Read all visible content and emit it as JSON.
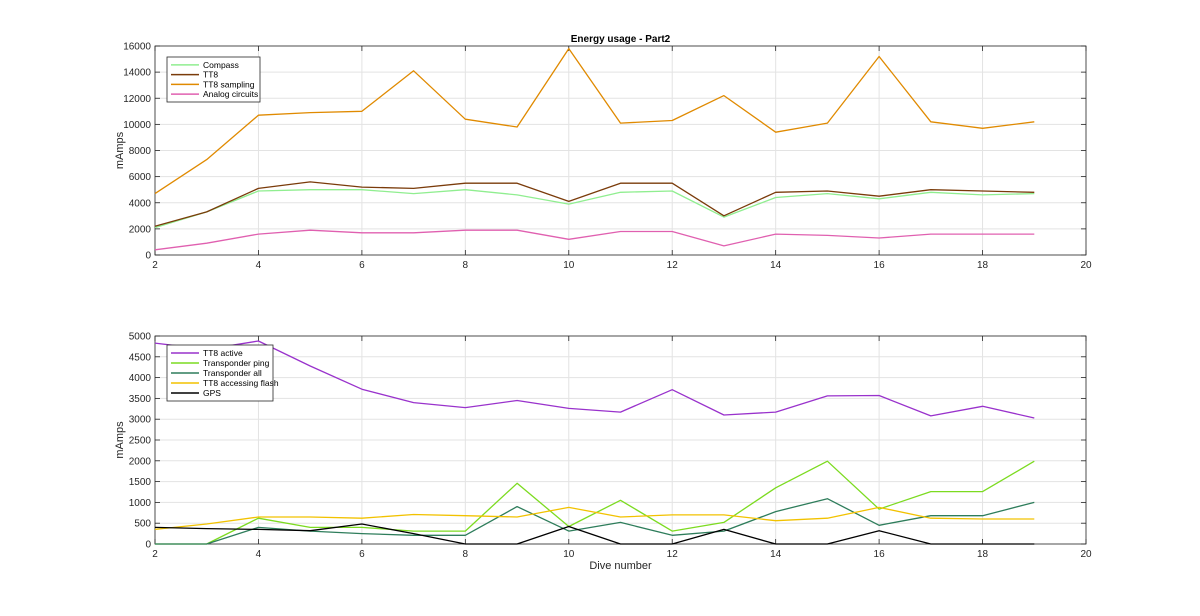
{
  "chart_data": [
    {
      "type": "line",
      "title": "Energy usage - Part2",
      "xlabel": "",
      "ylabel": "mAmps",
      "xlim": [
        2,
        20
      ],
      "ylim": [
        0,
        16000
      ],
      "xticks": [
        2,
        4,
        6,
        8,
        10,
        12,
        14,
        16,
        18,
        20
      ],
      "yticks": [
        0,
        2000,
        4000,
        6000,
        8000,
        10000,
        12000,
        14000,
        16000
      ],
      "grid": true,
      "legend_position": "top-left",
      "x": [
        2,
        3,
        4,
        5,
        6,
        7,
        8,
        9,
        10,
        11,
        12,
        13,
        14,
        15,
        16,
        17,
        18,
        19
      ],
      "series": [
        {
          "name": "Compass",
          "color": "#90ee90",
          "values": [
            2100,
            3300,
            4900,
            5000,
            5000,
            4700,
            5000,
            4600,
            3900,
            4800,
            4900,
            2900,
            4400,
            4700,
            4300,
            4800,
            4600,
            4700
          ]
        },
        {
          "name": "TT8",
          "color": "#7a3b0a",
          "values": [
            2200,
            3300,
            5100,
            5600,
            5200,
            5100,
            5500,
            5500,
            4100,
            5500,
            5500,
            3000,
            4800,
            4900,
            4500,
            5000,
            4900,
            4800
          ]
        },
        {
          "name": "TT8 sampling",
          "color": "#e08a00",
          "values": [
            4700,
            7300,
            10700,
            10900,
            11000,
            14100,
            10400,
            9800,
            15800,
            10100,
            10300,
            12200,
            9400,
            10100,
            15200,
            10200,
            9700,
            10200
          ]
        },
        {
          "name": "Analog circuits",
          "color": "#e060b0",
          "values": [
            400,
            900,
            1600,
            1900,
            1700,
            1700,
            1900,
            1900,
            1200,
            1800,
            1800,
            700,
            1600,
            1500,
            1300,
            1600,
            1600,
            1600
          ]
        }
      ]
    },
    {
      "type": "line",
      "title": "",
      "xlabel": "Dive number",
      "ylabel": "mAmps",
      "xlim": [
        2,
        20
      ],
      "ylim": [
        0,
        5000
      ],
      "xticks": [
        2,
        4,
        6,
        8,
        10,
        12,
        14,
        16,
        18,
        20
      ],
      "yticks": [
        0,
        500,
        1000,
        1500,
        2000,
        2500,
        3000,
        3500,
        4000,
        4500,
        5000
      ],
      "grid": true,
      "legend_position": "top-left",
      "x": [
        2,
        3,
        4,
        5,
        6,
        7,
        8,
        9,
        10,
        11,
        12,
        13,
        14,
        15,
        16,
        17,
        18,
        19
      ],
      "series": [
        {
          "name": "TT8 active",
          "color": "#9932cc",
          "values": [
            4830,
            4680,
            4880,
            4280,
            3720,
            3400,
            3280,
            3450,
            3260,
            3170,
            3710,
            3100,
            3170,
            3560,
            3570,
            3080,
            3310,
            3030
          ]
        },
        {
          "name": "Transponder ping",
          "color": "#7cdb20",
          "values": [
            0,
            0,
            620,
            400,
            400,
            310,
            310,
            1460,
            420,
            1050,
            310,
            520,
            1350,
            1990,
            840,
            1260,
            1260,
            1990
          ]
        },
        {
          "name": "Transponder all",
          "color": "#2e7d5b",
          "values": [
            0,
            0,
            400,
            310,
            250,
            210,
            210,
            900,
            310,
            520,
            210,
            310,
            780,
            1090,
            450,
            680,
            680,
            1000
          ]
        },
        {
          "name": "TT8 accessing flash",
          "color": "#f2c200",
          "values": [
            350,
            480,
            650,
            650,
            620,
            710,
            680,
            650,
            880,
            650,
            700,
            700,
            560,
            620,
            880,
            620,
            600,
            600
          ]
        },
        {
          "name": "GPS",
          "color": "#000000",
          "values": [
            400,
            370,
            350,
            320,
            480,
            250,
            0,
            0,
            420,
            0,
            0,
            350,
            0,
            0,
            320,
            0,
            0,
            0
          ]
        }
      ]
    }
  ]
}
